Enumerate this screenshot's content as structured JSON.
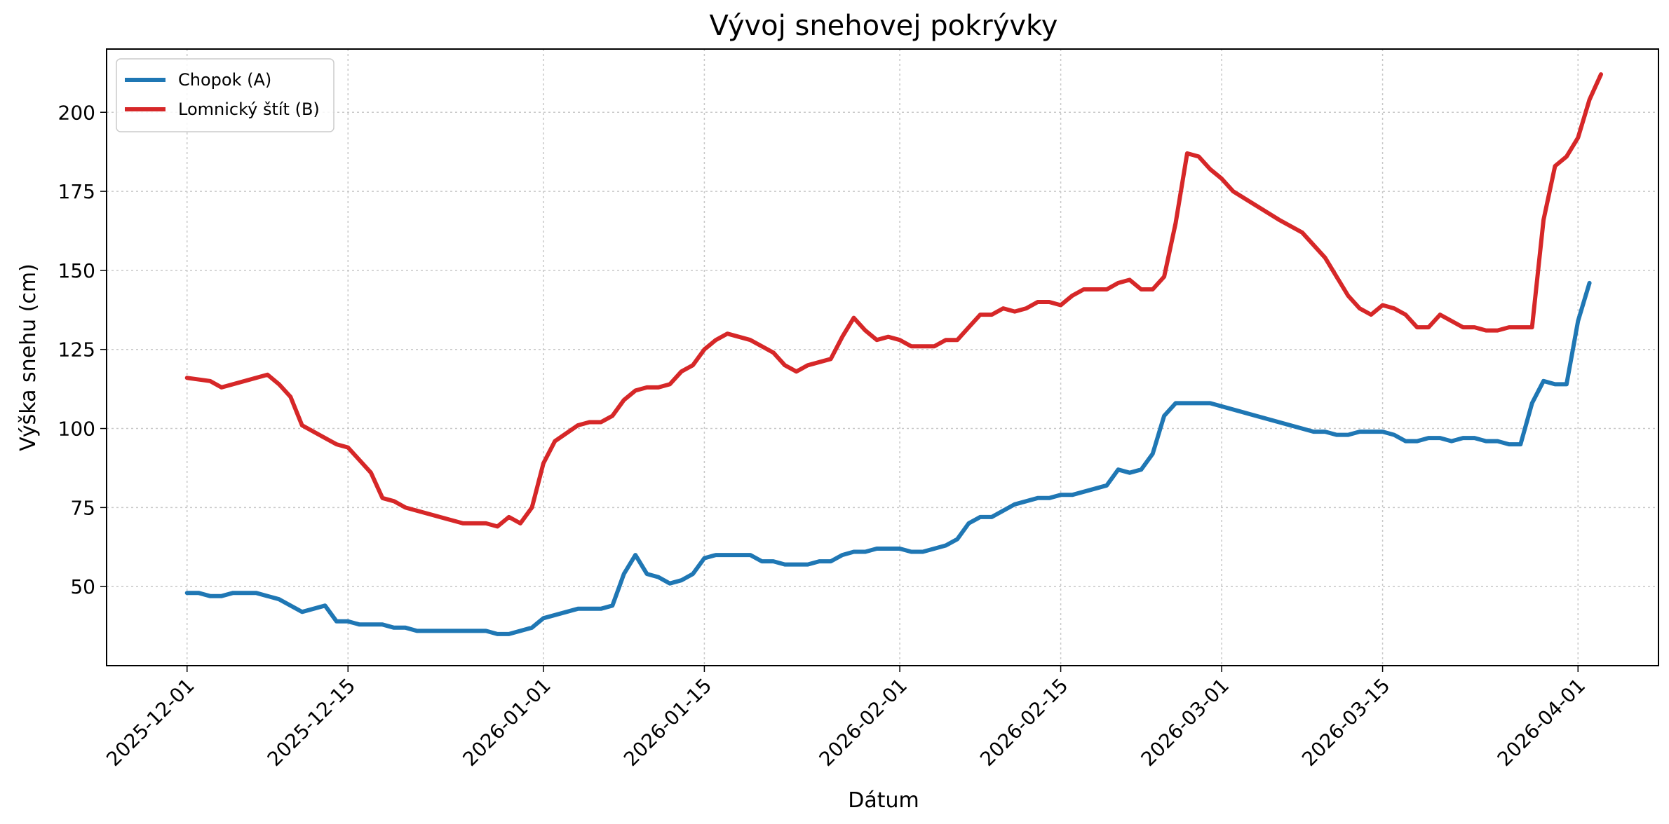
{
  "chart_data": {
    "type": "line",
    "title": "Vývoj snehovej pokrývky",
    "xlabel": "Dátum",
    "ylabel": "Výška snehu (cm)",
    "xlim": [
      "2025-11-24",
      "2026-04-08"
    ],
    "ylim": [
      25,
      220
    ],
    "x_ticks": [
      "2025-12-01",
      "2025-12-15",
      "2026-01-01",
      "2026-01-15",
      "2026-02-01",
      "2026-02-15",
      "2026-03-01",
      "2026-03-15",
      "2026-04-01"
    ],
    "y_ticks": [
      50,
      75,
      100,
      125,
      150,
      175,
      200
    ],
    "grid": true,
    "legend_position": "top-left",
    "series": [
      {
        "name": "Chopok (A)",
        "color": "#1f77b4",
        "points": [
          [
            "2025-12-01",
            48
          ],
          [
            "2025-12-02",
            48
          ],
          [
            "2025-12-03",
            47
          ],
          [
            "2025-12-04",
            47
          ],
          [
            "2025-12-05",
            48
          ],
          [
            "2025-12-07",
            48
          ],
          [
            "2025-12-09",
            46
          ],
          [
            "2025-12-11",
            42
          ],
          [
            "2025-12-13",
            44
          ],
          [
            "2025-12-14",
            39
          ],
          [
            "2025-12-15",
            39
          ],
          [
            "2025-12-16",
            38
          ],
          [
            "2025-12-18",
            38
          ],
          [
            "2025-12-19",
            37
          ],
          [
            "2025-12-20",
            37
          ],
          [
            "2025-12-21",
            36
          ],
          [
            "2025-12-24",
            36
          ],
          [
            "2025-12-27",
            36
          ],
          [
            "2025-12-28",
            35
          ],
          [
            "2025-12-29",
            35
          ],
          [
            "2025-12-31",
            37
          ],
          [
            "2026-01-01",
            40
          ],
          [
            "2026-01-03",
            42
          ],
          [
            "2026-01-04",
            43
          ],
          [
            "2026-01-06",
            43
          ],
          [
            "2026-01-07",
            44
          ],
          [
            "2026-01-08",
            54
          ],
          [
            "2026-01-09",
            60
          ],
          [
            "2026-01-10",
            54
          ],
          [
            "2026-01-11",
            53
          ],
          [
            "2026-01-12",
            51
          ],
          [
            "2026-01-13",
            52
          ],
          [
            "2026-01-14",
            54
          ],
          [
            "2026-01-15",
            59
          ],
          [
            "2026-01-16",
            60
          ],
          [
            "2026-01-18",
            60
          ],
          [
            "2026-01-19",
            60
          ],
          [
            "2026-01-20",
            58
          ],
          [
            "2026-01-21",
            58
          ],
          [
            "2026-01-22",
            57
          ],
          [
            "2026-01-24",
            57
          ],
          [
            "2026-01-25",
            58
          ],
          [
            "2026-01-26",
            58
          ],
          [
            "2026-01-27",
            60
          ],
          [
            "2026-01-28",
            61
          ],
          [
            "2026-01-29",
            61
          ],
          [
            "2026-01-30",
            62
          ],
          [
            "2026-02-01",
            62
          ],
          [
            "2026-02-02",
            61
          ],
          [
            "2026-02-03",
            61
          ],
          [
            "2026-02-05",
            63
          ],
          [
            "2026-02-06",
            65
          ],
          [
            "2026-02-07",
            70
          ],
          [
            "2026-02-08",
            72
          ],
          [
            "2026-02-09",
            72
          ],
          [
            "2026-02-11",
            76
          ],
          [
            "2026-02-13",
            78
          ],
          [
            "2026-02-14",
            78
          ],
          [
            "2026-02-15",
            79
          ],
          [
            "2026-02-16",
            79
          ],
          [
            "2026-02-19",
            82
          ],
          [
            "2026-02-20",
            87
          ],
          [
            "2026-02-21",
            86
          ],
          [
            "2026-02-22",
            87
          ],
          [
            "2026-02-23",
            92
          ],
          [
            "2026-02-24",
            104
          ],
          [
            "2026-02-25",
            108
          ],
          [
            "2026-02-28",
            108
          ],
          [
            "2026-03-09",
            99
          ],
          [
            "2026-03-10",
            99
          ],
          [
            "2026-03-11",
            98
          ],
          [
            "2026-03-12",
            98
          ],
          [
            "2026-03-13",
            99
          ],
          [
            "2026-03-14",
            99
          ],
          [
            "2026-03-15",
            99
          ],
          [
            "2026-03-16",
            98
          ],
          [
            "2026-03-17",
            96
          ],
          [
            "2026-03-18",
            96
          ],
          [
            "2026-03-19",
            97
          ],
          [
            "2026-03-20",
            97
          ],
          [
            "2026-03-21",
            96
          ],
          [
            "2026-03-22",
            97
          ],
          [
            "2026-03-23",
            97
          ],
          [
            "2026-03-24",
            96
          ],
          [
            "2026-03-25",
            96
          ],
          [
            "2026-03-26",
            95
          ],
          [
            "2026-03-27",
            95
          ],
          [
            "2026-03-28",
            108
          ],
          [
            "2026-03-29",
            115
          ],
          [
            "2026-03-30",
            114
          ],
          [
            "2026-03-31",
            114
          ],
          [
            "2026-04-01",
            134
          ],
          [
            "2026-04-02",
            146
          ]
        ]
      },
      {
        "name": "Lomnický štít (B)",
        "color": "#d62728",
        "points": [
          [
            "2025-12-01",
            116
          ],
          [
            "2025-12-03",
            115
          ],
          [
            "2025-12-04",
            113
          ],
          [
            "2025-12-08",
            117
          ],
          [
            "2025-12-09",
            114
          ],
          [
            "2025-12-10",
            110
          ],
          [
            "2025-12-11",
            101
          ],
          [
            "2025-12-13",
            97
          ],
          [
            "2025-12-14",
            95
          ],
          [
            "2025-12-15",
            94
          ],
          [
            "2025-12-17",
            86
          ],
          [
            "2025-12-18",
            78
          ],
          [
            "2025-12-19",
            77
          ],
          [
            "2025-12-20",
            75
          ],
          [
            "2025-12-22",
            73
          ],
          [
            "2025-12-24",
            71
          ],
          [
            "2025-12-25",
            70
          ],
          [
            "2025-12-27",
            70
          ],
          [
            "2025-12-28",
            69
          ],
          [
            "2025-12-29",
            72
          ],
          [
            "2025-12-30",
            70
          ],
          [
            "2025-12-31",
            75
          ],
          [
            "2026-01-01",
            89
          ],
          [
            "2026-01-02",
            96
          ],
          [
            "2026-01-04",
            101
          ],
          [
            "2026-01-05",
            102
          ],
          [
            "2026-01-06",
            102
          ],
          [
            "2026-01-07",
            104
          ],
          [
            "2026-01-08",
            109
          ],
          [
            "2026-01-09",
            112
          ],
          [
            "2026-01-10",
            113
          ],
          [
            "2026-01-11",
            113
          ],
          [
            "2026-01-12",
            114
          ],
          [
            "2026-01-13",
            118
          ],
          [
            "2026-01-14",
            120
          ],
          [
            "2026-01-15",
            125
          ],
          [
            "2026-01-16",
            128
          ],
          [
            "2026-01-17",
            130
          ],
          [
            "2026-01-19",
            128
          ],
          [
            "2026-01-21",
            124
          ],
          [
            "2026-01-22",
            120
          ],
          [
            "2026-01-23",
            118
          ],
          [
            "2026-01-24",
            120
          ],
          [
            "2026-01-26",
            122
          ],
          [
            "2026-01-27",
            129
          ],
          [
            "2026-01-28",
            135
          ],
          [
            "2026-01-29",
            131
          ],
          [
            "2026-01-30",
            128
          ],
          [
            "2026-01-31",
            129
          ],
          [
            "2026-02-01",
            128
          ],
          [
            "2026-02-02",
            126
          ],
          [
            "2026-02-04",
            126
          ],
          [
            "2026-02-05",
            128
          ],
          [
            "2026-02-06",
            128
          ],
          [
            "2026-02-07",
            132
          ],
          [
            "2026-02-08",
            136
          ],
          [
            "2026-02-09",
            136
          ],
          [
            "2026-02-10",
            138
          ],
          [
            "2026-02-11",
            137
          ],
          [
            "2026-02-12",
            138
          ],
          [
            "2026-02-13",
            140
          ],
          [
            "2026-02-14",
            140
          ],
          [
            "2026-02-15",
            139
          ],
          [
            "2026-02-16",
            142
          ],
          [
            "2026-02-17",
            144
          ],
          [
            "2026-02-19",
            144
          ],
          [
            "2026-02-20",
            146
          ],
          [
            "2026-02-21",
            147
          ],
          [
            "2026-02-22",
            144
          ],
          [
            "2026-02-23",
            144
          ],
          [
            "2026-02-24",
            148
          ],
          [
            "2026-02-25",
            165
          ],
          [
            "2026-02-26",
            187
          ],
          [
            "2026-02-27",
            186
          ],
          [
            "2026-02-28",
            182
          ],
          [
            "2026-03-01",
            179
          ],
          [
            "2026-03-02",
            175
          ],
          [
            "2026-03-06",
            166
          ],
          [
            "2026-03-08",
            162
          ],
          [
            "2026-03-10",
            154
          ],
          [
            "2026-03-12",
            142
          ],
          [
            "2026-03-13",
            138
          ],
          [
            "2026-03-14",
            136
          ],
          [
            "2026-03-15",
            139
          ],
          [
            "2026-03-16",
            138
          ],
          [
            "2026-03-17",
            136
          ],
          [
            "2026-03-18",
            132
          ],
          [
            "2026-03-19",
            132
          ],
          [
            "2026-03-20",
            136
          ],
          [
            "2026-03-21",
            134
          ],
          [
            "2026-03-22",
            132
          ],
          [
            "2026-03-23",
            132
          ],
          [
            "2026-03-24",
            131
          ],
          [
            "2026-03-25",
            131
          ],
          [
            "2026-03-26",
            132
          ],
          [
            "2026-03-28",
            132
          ],
          [
            "2026-03-29",
            166
          ],
          [
            "2026-03-30",
            183
          ],
          [
            "2026-03-31",
            186
          ],
          [
            "2026-04-01",
            192
          ],
          [
            "2026-04-02",
            204
          ],
          [
            "2026-04-03",
            212
          ]
        ]
      }
    ]
  }
}
